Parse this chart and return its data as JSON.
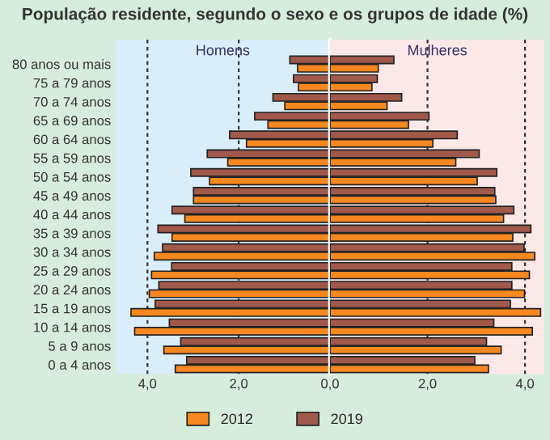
{
  "chart_data": [
    {
      "type": "bar",
      "orientation": "horizontal",
      "title": "População residente, segundo o sexo e os grupos de idade (%)",
      "annotations": [
        "Homens"
      ],
      "categories": [
        "80 anos ou mais",
        "75 a 79 anos",
        "70 a 74 anos",
        "65 a 69 anos",
        "60 a 64 anos",
        "55 a 59 anos",
        "50 a 54 anos",
        "45 a 49 anos",
        "40 a 44 anos",
        "35 a 39 anos",
        "30 a 34 anos",
        "25 a 29 anos",
        "20 a 24 anos",
        "15 a 19 anos",
        "10 a 14 anos",
        "5 a 9 anos",
        "0 a 4 anos"
      ],
      "series": [
        {
          "name": "2019",
          "color": "#a0594a",
          "values": [
            0.88,
            0.8,
            1.25,
            1.65,
            2.2,
            2.69,
            3.05,
            2.99,
            3.46,
            3.77,
            3.67,
            3.47,
            3.75,
            3.83,
            3.52,
            3.27,
            3.14
          ]
        },
        {
          "name": "2012",
          "color": "#f7871f",
          "values": [
            0.71,
            0.69,
            0.99,
            1.36,
            1.83,
            2.24,
            2.64,
            2.99,
            3.18,
            3.46,
            3.85,
            3.91,
            3.96,
            4.36,
            4.28,
            3.64,
            3.39
          ]
        }
      ],
      "xlim": [
        4.7,
        0
      ],
      "xticks": [
        {
          "value": 4,
          "label": "4,0"
        },
        {
          "value": 2,
          "label": "2,0"
        },
        {
          "value": 0,
          "label": "0,0"
        }
      ],
      "grid": "x",
      "legend": "bottom",
      "bands": [
        {
          "axis": "x",
          "from": 4.7,
          "to": 0,
          "color": "#d9eefa"
        }
      ],
      "ref_lines": [
        {
          "axis": "x",
          "value": 0,
          "color": "#ffffff"
        }
      ]
    },
    {
      "type": "bar",
      "orientation": "horizontal",
      "annotations": [
        "Mulheres"
      ],
      "categories": [
        null,
        null,
        null,
        null,
        null,
        null,
        null,
        null,
        null,
        null,
        null,
        null,
        null,
        null,
        null,
        null,
        null
      ],
      "series": [
        {
          "name": "2019",
          "color": "#a0594a",
          "values": [
            1.31,
            0.97,
            1.47,
            2.03,
            2.61,
            3.06,
            3.42,
            3.38,
            3.77,
            4.12,
            3.98,
            3.73,
            3.73,
            3.7,
            3.36,
            3.21,
            2.97
          ]
        },
        {
          "name": "2012",
          "color": "#f7871f",
          "values": [
            0.99,
            0.86,
            1.17,
            1.61,
            2.11,
            2.58,
            3.02,
            3.4,
            3.56,
            3.75,
            4.2,
            4.09,
            3.99,
            4.32,
            4.15,
            3.51,
            3.25
          ]
        }
      ],
      "xlim": [
        0,
        4.4
      ],
      "xticks": [
        {
          "value": 2,
          "label": "2,0"
        },
        {
          "value": 4,
          "label": "4,0"
        }
      ],
      "tick_labels": "x",
      "grid": "x",
      "bands": [
        {
          "axis": "x",
          "from": 0,
          "to": 4.4,
          "color": "#fde8e8"
        }
      ]
    }
  ]
}
